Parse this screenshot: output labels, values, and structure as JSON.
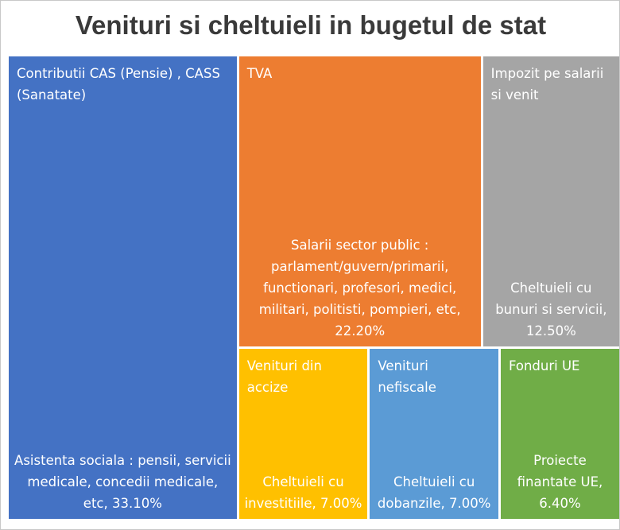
{
  "chart_data": {
    "type": "treemap",
    "title": "Venituri si cheltuieli in bugetul de stat",
    "categories": [
      "Contributii CAS (Pensie) , CASS (Sanatate)",
      "TVA",
      "Impozit pe salarii si venit",
      "Venituri din accize",
      "Venituri nefiscale",
      "Fonduri UE"
    ],
    "expense_labels": [
      "Asistenta sociala : pensii, servicii medicale, concedii medicale, etc,",
      "Salarii sector public : parlament/guvern/primarii, functionari, profesori, medici, militari, politisti, pompieri, etc,",
      "Cheltuieli cu bunuri si servicii,",
      "Cheltuieli cu investitiile,",
      "Cheltuieli cu dobanzile,",
      "Proiecte finantate UE,"
    ],
    "values": [
      33.1,
      22.2,
      12.5,
      7.0,
      7.0,
      6.4
    ],
    "value_labels": [
      "33.10%",
      "22.20%",
      "12.50%",
      "7.00%",
      "7.00%",
      "6.40%"
    ],
    "colors": [
      "#4472c4",
      "#ed7d31",
      "#a5a5a5",
      "#ffc000",
      "#5b9bd5",
      "#70ad47"
    ]
  }
}
